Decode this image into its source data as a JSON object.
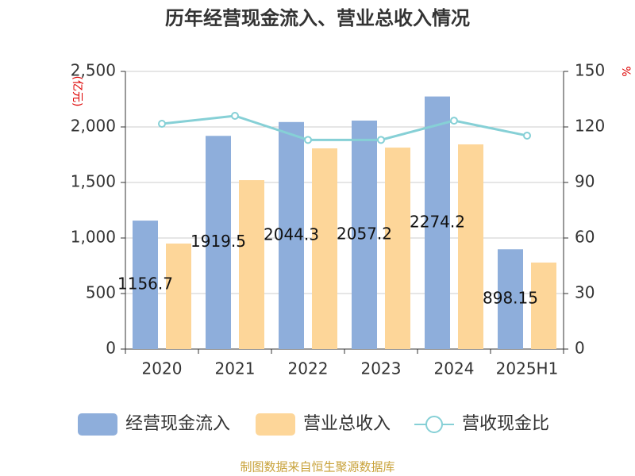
{
  "chart_data": {
    "type": "bar_line",
    "title": "历年经营现金流入、营业总收入情况",
    "y_label": "(亿元)",
    "y2_label": "%",
    "source": "制图数据来自恒生聚源数据库",
    "categories": [
      "2020",
      "2021",
      "2022",
      "2023",
      "2024",
      "2025H1"
    ],
    "series": [
      {
        "name": "经营现金流入",
        "color": "#8eaedb",
        "type": "bar",
        "values": [
          1156.7,
          1919.5,
          2044.3,
          2057.2,
          2274.2,
          898.15
        ]
      },
      {
        "name": "营业总收入",
        "color": "#fdd699",
        "type": "bar",
        "values": [
          950,
          1521,
          1807,
          1814,
          1843,
          779
        ]
      },
      {
        "name": "营收现金比",
        "color": "#86d0d6",
        "type": "line",
        "axis": "y2",
        "values": [
          121.7,
          126,
          113,
          113,
          123.4,
          115.3
        ]
      }
    ],
    "ylim": [
      0,
      2500
    ],
    "yticks": [
      0,
      500,
      {
        "value": 1000,
        "label": "1,000"
      },
      {
        "value": 1500,
        "label": "1,500"
      },
      {
        "value": 2000,
        "label": "2,000"
      },
      {
        "value": 2500,
        "label": "2,500"
      }
    ],
    "y2lim": [
      0,
      150
    ],
    "y2ticks": [
      0,
      30,
      60,
      90,
      120,
      150
    ],
    "grid": true
  }
}
